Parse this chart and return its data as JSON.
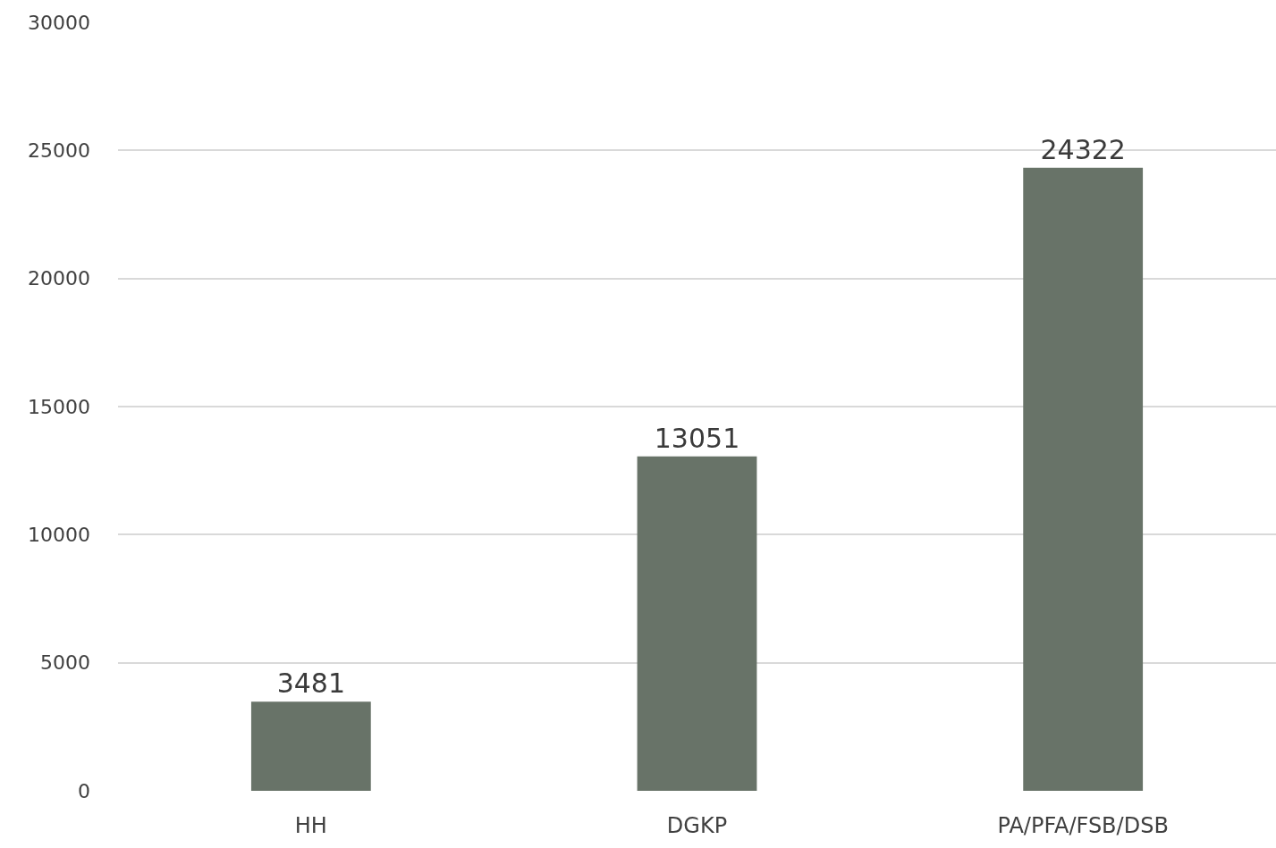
{
  "chart_data": {
    "type": "bar",
    "categories": [
      "HH",
      "DGKP",
      "PA/PFA/FSB/DSB"
    ],
    "values": [
      3481,
      13051,
      24322
    ],
    "color": "#687368",
    "ylim": [
      0,
      30000
    ],
    "yticks": [
      0,
      5000,
      10000,
      15000,
      20000,
      25000,
      30000
    ],
    "grid": "y",
    "data_labels": true
  }
}
